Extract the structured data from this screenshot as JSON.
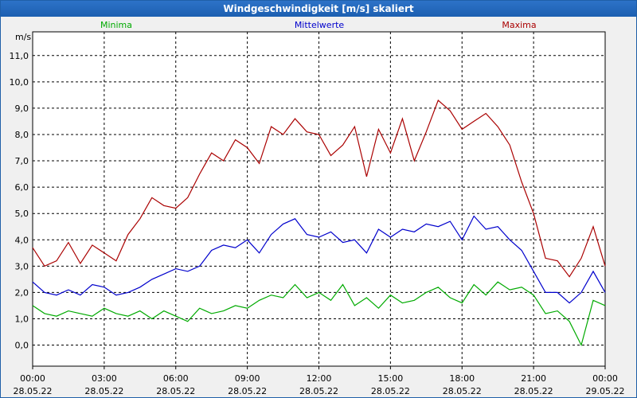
{
  "window": {
    "title": "Windgeschwindigkeit [m/s] skaliert"
  },
  "chart_data": {
    "type": "line",
    "title": "Windgeschwindigkeit [m/s] skaliert",
    "ylabel": "m/s",
    "ylim": [
      -0.8,
      11.9
    ],
    "y_ticks": [
      "0,0",
      "1,0",
      "2,0",
      "3,0",
      "4,0",
      "5,0",
      "6,0",
      "7,0",
      "8,0",
      "9,0",
      "10,0",
      "11,0"
    ],
    "x_ticks": [
      {
        "time": "00:00",
        "date": "28.05.22"
      },
      {
        "time": "03:00",
        "date": "28.05.22"
      },
      {
        "time": "06:00",
        "date": "28.05.22"
      },
      {
        "time": "09:00",
        "date": "28.05.22"
      },
      {
        "time": "12:00",
        "date": "28.05.22"
      },
      {
        "time": "15:00",
        "date": "28.05.22"
      },
      {
        "time": "18:00",
        "date": "28.05.22"
      },
      {
        "time": "21:00",
        "date": "28.05.22"
      },
      {
        "time": "00:00",
        "date": "29.05.22"
      }
    ],
    "x_hours": [
      0,
      0.5,
      1,
      1.5,
      2,
      2.5,
      3,
      3.5,
      4,
      4.5,
      5,
      5.5,
      6,
      6.5,
      7,
      7.5,
      8,
      8.5,
      9,
      9.5,
      10,
      10.5,
      11,
      11.5,
      12,
      12.5,
      13,
      13.5,
      14,
      14.5,
      15,
      15.5,
      16,
      16.5,
      17,
      17.5,
      18,
      18.5,
      19,
      19.5,
      20,
      20.5,
      21,
      21.5,
      22,
      22.5,
      23,
      23.5,
      24
    ],
    "grid": true,
    "series": [
      {
        "name": "Minima",
        "color": "#00aa00",
        "values": [
          1.5,
          1.2,
          1.1,
          1.3,
          1.2,
          1.1,
          1.4,
          1.2,
          1.1,
          1.3,
          1.0,
          1.3,
          1.1,
          0.9,
          1.4,
          1.2,
          1.3,
          1.5,
          1.4,
          1.7,
          1.9,
          1.8,
          2.3,
          1.8,
          2.0,
          1.7,
          2.3,
          1.5,
          1.8,
          1.4,
          1.9,
          1.6,
          1.7,
          2.0,
          2.2,
          1.8,
          1.6,
          2.3,
          1.9,
          2.4,
          2.1,
          2.2,
          1.9,
          1.2,
          1.3,
          0.9,
          0.0,
          1.7,
          1.5
        ]
      },
      {
        "name": "Mittelwerte",
        "color": "#0000cc",
        "values": [
          2.4,
          2.0,
          1.9,
          2.1,
          1.9,
          2.3,
          2.2,
          1.9,
          2.0,
          2.2,
          2.5,
          2.7,
          2.9,
          2.8,
          3.0,
          3.6,
          3.8,
          3.7,
          4.0,
          3.5,
          4.2,
          4.6,
          4.8,
          4.2,
          4.1,
          4.3,
          3.9,
          4.0,
          3.5,
          4.4,
          4.1,
          4.4,
          4.3,
          4.6,
          4.5,
          4.7,
          4.0,
          4.9,
          4.4,
          4.5,
          4.0,
          3.6,
          2.8,
          2.0,
          2.0,
          1.6,
          2.0,
          2.8,
          2.0
        ]
      },
      {
        "name": "Maxima",
        "color": "#aa0000",
        "values": [
          3.7,
          3.0,
          3.2,
          3.9,
          3.1,
          3.8,
          3.5,
          3.2,
          4.2,
          4.8,
          5.6,
          5.3,
          5.2,
          5.6,
          6.5,
          7.3,
          7.0,
          7.8,
          7.5,
          6.9,
          8.3,
          8.0,
          8.6,
          8.1,
          8.0,
          7.2,
          7.6,
          8.3,
          6.4,
          8.2,
          7.3,
          8.6,
          7.0,
          8.1,
          9.3,
          8.9,
          8.2,
          8.5,
          8.8,
          8.3,
          7.6,
          6.2,
          5.0,
          3.3,
          3.2,
          2.6,
          3.3,
          4.5,
          3.0
        ]
      }
    ]
  }
}
